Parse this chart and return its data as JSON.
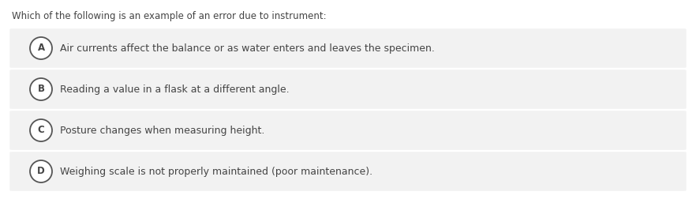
{
  "question": "Which of the following is an example of an error due to instrument:",
  "options": [
    {
      "label": "A",
      "text": "Air currents affect the balance or as water enters and leaves the specimen."
    },
    {
      "label": "B",
      "text": "Reading a value in a flask at a different angle."
    },
    {
      "label": "C",
      "text": "Posture changes when measuring height."
    },
    {
      "label": "D",
      "text": "Weighing scale is not properly maintained (poor maintenance)."
    }
  ],
  "background_color": "#ffffff",
  "option_bg_color": "#f2f2f2",
  "question_color": "#444444",
  "option_text_color": "#444444",
  "circle_edge_color": "#555555",
  "circle_face_color": "#ffffff",
  "label_color": "#444444",
  "question_fontsize": 8.5,
  "option_fontsize": 9.0,
  "label_fontsize": 8.5,
  "fig_width": 8.82,
  "fig_height": 2.57,
  "dpi": 100
}
